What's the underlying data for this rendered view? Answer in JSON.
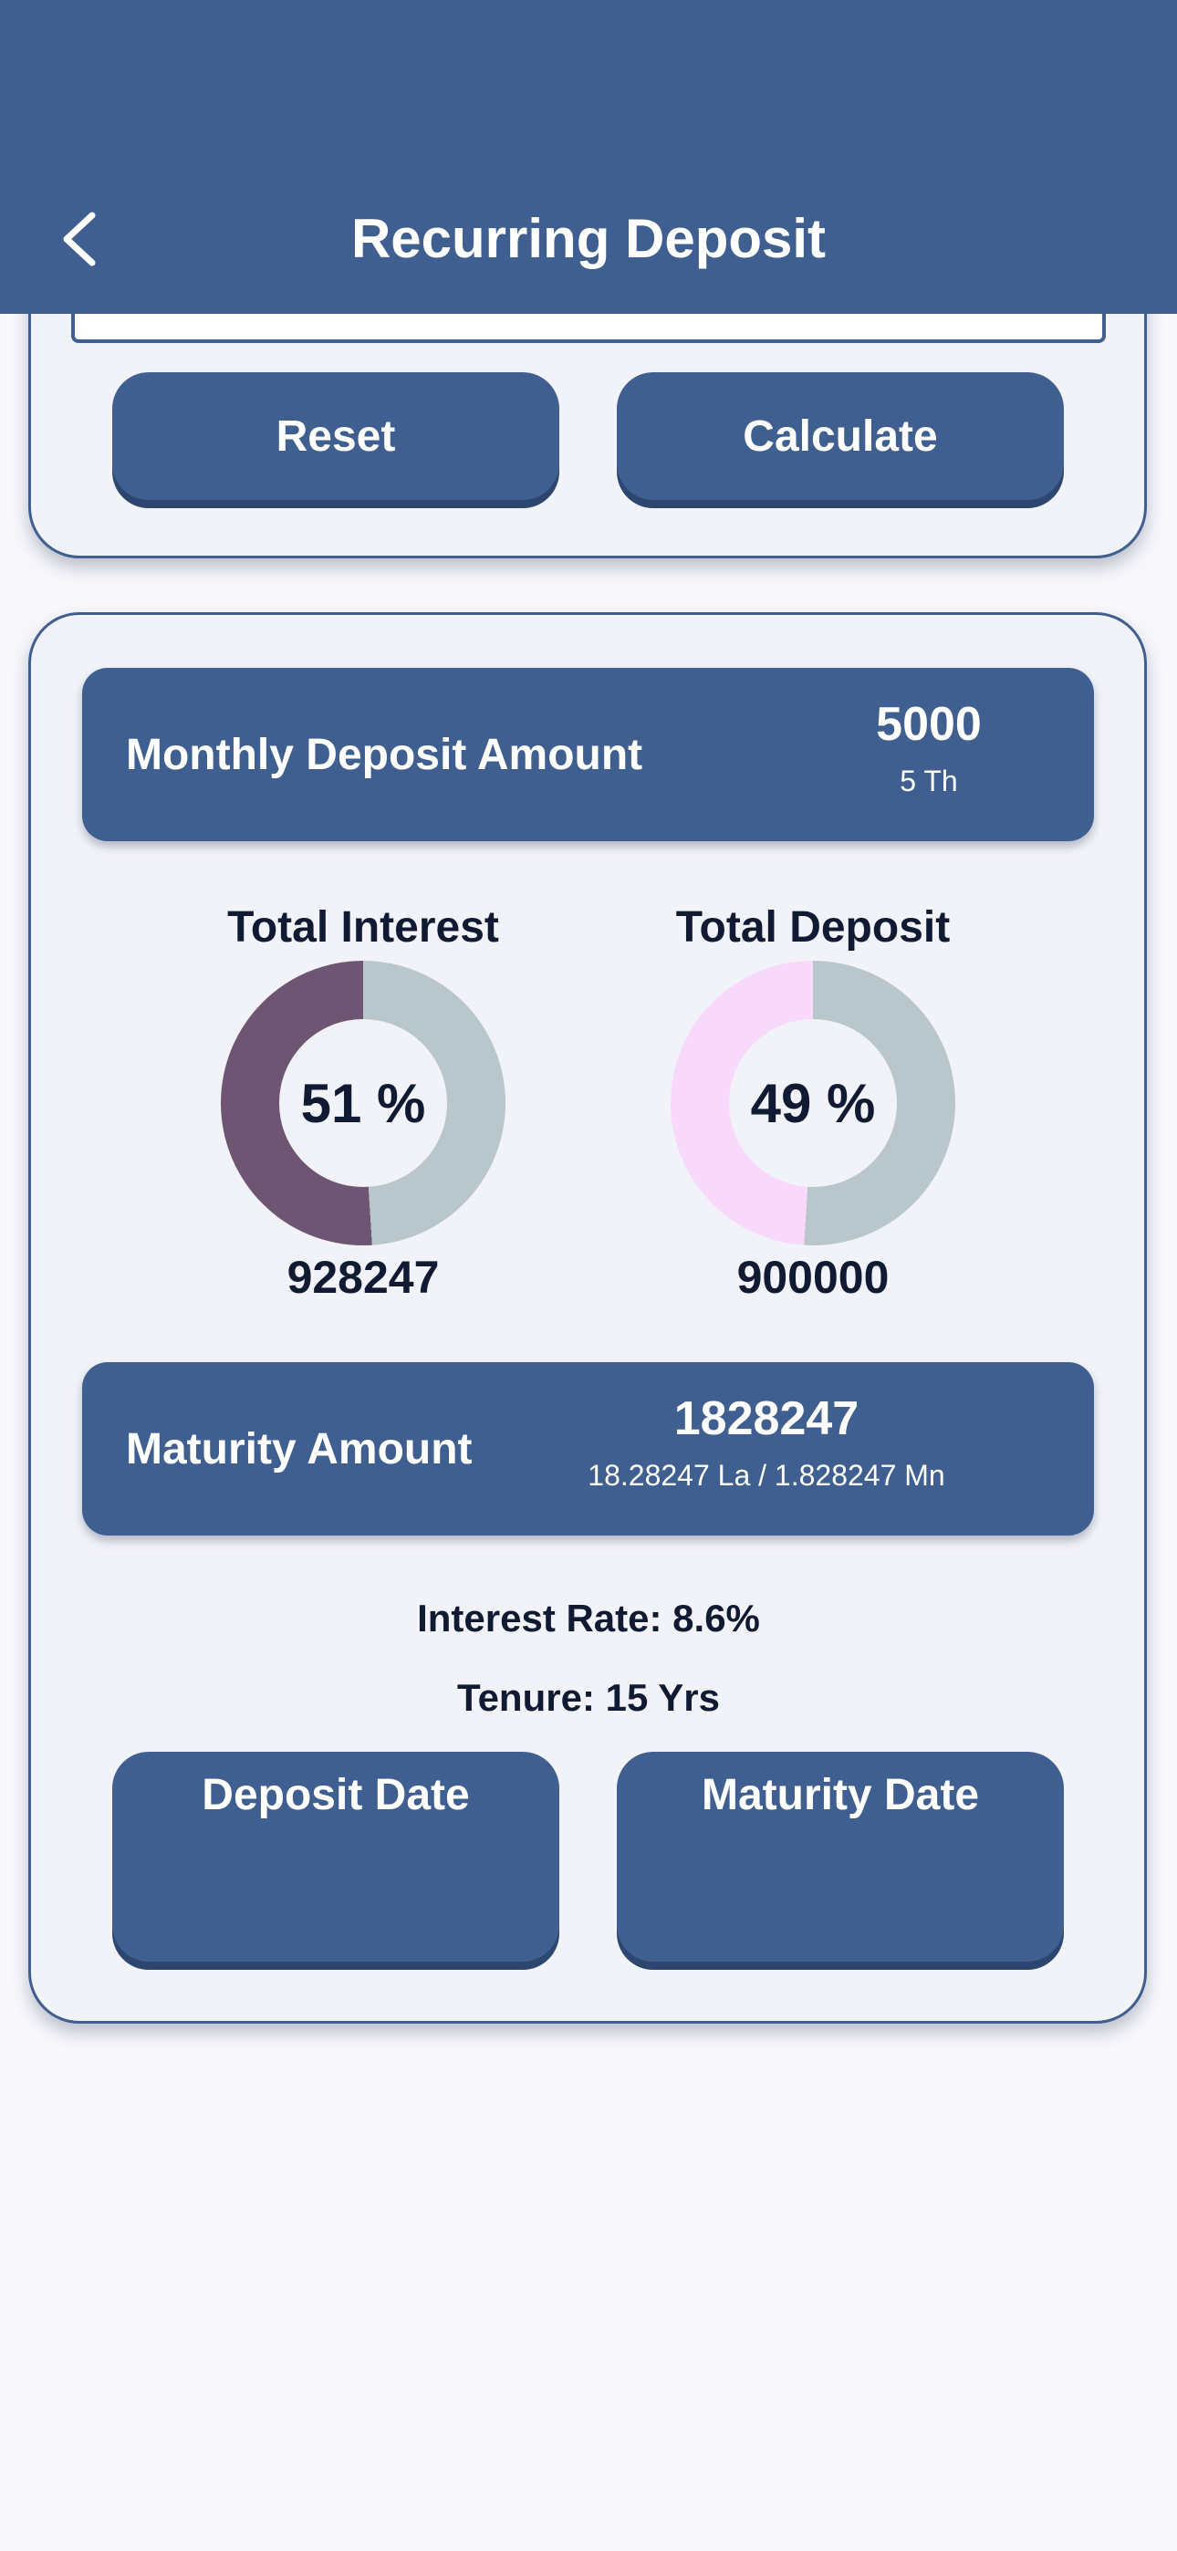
{
  "header": {
    "title": "Recurring Deposit",
    "background": "#3f5f90"
  },
  "actions": {
    "reset_label": "Reset",
    "calculate_label": "Calculate"
  },
  "monthly_deposit": {
    "label": "Monthly Deposit Amount",
    "value": "5000",
    "sub_value": "5 Th"
  },
  "total_interest": {
    "title": "Total Interest",
    "percent_text": "51 %",
    "percent": 51,
    "amount": "928247",
    "fill_color": "#6e5574",
    "track_color": "#b9c6cc"
  },
  "total_deposit": {
    "title": "Total Deposit",
    "percent_text": "49 %",
    "percent": 49,
    "amount": "900000",
    "fill_color": "#f8d9fb",
    "track_color": "#b9c6cc"
  },
  "maturity": {
    "label": "Maturity Amount",
    "value": "1828247",
    "sub_value": "18.28247 La / 1.828247 Mn"
  },
  "summary": {
    "interest_rate": "Interest Rate: 8.6%",
    "tenure": "Tenure: 15 Yrs"
  },
  "dates": {
    "deposit_label": "Deposit Date",
    "maturity_label": "Maturity Date"
  }
}
